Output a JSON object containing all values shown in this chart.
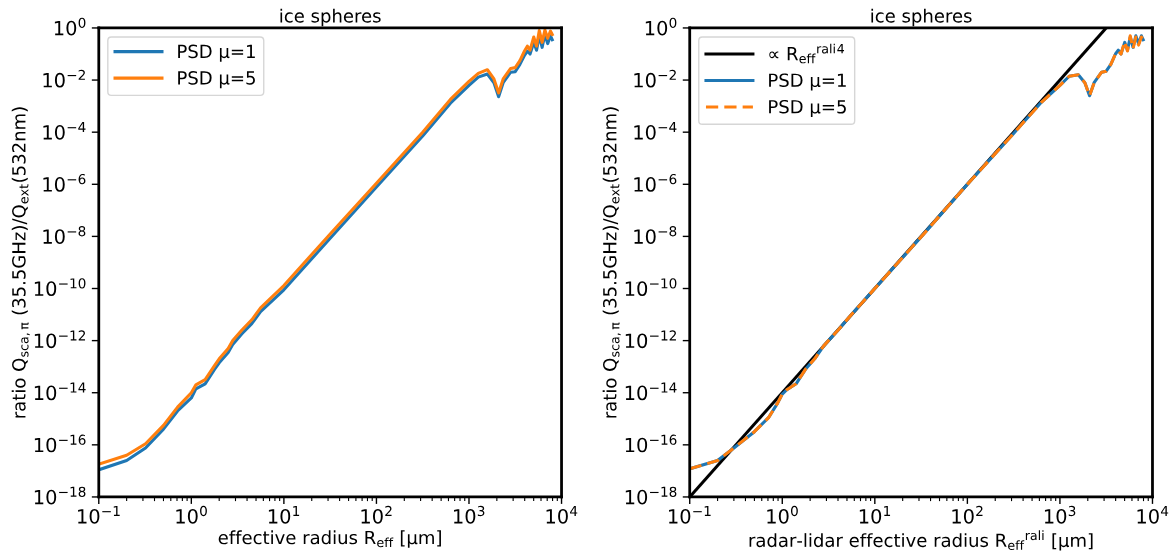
{
  "chart_data": [
    {
      "type": "line",
      "title": "ice spheres",
      "xlabel": "effective radius R$_{eff}$ [μm]",
      "ylabel": "ratio Q$_{sca,π}$ (35.5GHz)/Q$_{ext}$(532nm)",
      "log": "xy",
      "grid": false,
      "legend": "top left",
      "xlim": [
        0.1,
        10000
      ],
      "ylim": [
        1e-18,
        1
      ],
      "xticks": [
        {
          "value": 0.1,
          "label": "10$^{−1}$"
        },
        {
          "value": 1,
          "label": "10$^{0}$"
        },
        {
          "value": 10,
          "label": "10$^{1}$"
        },
        {
          "value": 100,
          "label": "10$^{2}$"
        },
        {
          "value": 1000,
          "label": "10$^{3}$"
        },
        {
          "value": 10000,
          "label": "10$^{4}$"
        }
      ],
      "yticks": [
        {
          "value": 1e-18,
          "label": "10$^{−18}$"
        },
        {
          "value": 1e-16,
          "label": "10$^{−16}$"
        },
        {
          "value": 1e-14,
          "label": "10$^{−14}$"
        },
        {
          "value": 1e-12,
          "label": "10$^{−12}$"
        },
        {
          "value": 1e-10,
          "label": "10$^{−10}$"
        },
        {
          "value": 1e-08,
          "label": "10$^{−8}$"
        },
        {
          "value": 1e-06,
          "label": "10$^{−6}$"
        },
        {
          "value": 0.0001,
          "label": "10$^{−4}$"
        },
        {
          "value": 0.01,
          "label": "10$^{−2}$"
        },
        {
          "value": 1,
          "label": "10$^{0}$"
        }
      ],
      "x": [
        0.1,
        0.2,
        0.32,
        0.5,
        0.71,
        1,
        1.12,
        1.41,
        1.78,
        2,
        2.5,
        2.8,
        3.5,
        4.5,
        5.6,
        10,
        32,
        100,
        316,
        630,
        1000,
        1260,
        1580,
        1860,
        2090,
        2340,
        2820,
        3160,
        3550,
        3980,
        4270,
        4570,
        5010,
        5370,
        5750,
        6170,
        6610,
        7080,
        7590,
        7940
      ],
      "series": [
        {
          "name": "PSD μ=1",
          "color": "#1f77b4",
          "line_style": "solid",
          "values": [
            1.1e-17,
            2.5e-17,
            7.6e-17,
            4e-16,
            2e-15,
            6.3e-15,
            1.4e-14,
            2.2e-14,
            7.9e-14,
            1.4e-13,
            3.5e-13,
            7.1e-13,
            1.8e-12,
            4.5e-12,
            1.3e-11,
            8.9e-11,
            8.9e-09,
            7.9e-07,
            7.1e-05,
            0.0013,
            0.0063,
            0.013,
            0.017,
            0.0079,
            0.0023,
            0.0079,
            0.02,
            0.021,
            0.04,
            0.089,
            0.13,
            0.1,
            0.28,
            0.14,
            0.5,
            0.18,
            0.56,
            0.25,
            0.5,
            0.35
          ]
        },
        {
          "name": "PSD μ=5",
          "color": "#ff7f0e",
          "line_style": "solid",
          "values": [
            1.8e-17,
            4e-17,
            1.1e-16,
            5.6e-16,
            2.8e-15,
            1e-14,
            2e-14,
            3.2e-14,
            1.1e-13,
            2e-13,
            5e-13,
            1e-12,
            2.5e-12,
            6.3e-12,
            1.8e-11,
            1.3e-10,
            1.3e-08,
            1.1e-06,
            0.0001,
            0.0018,
            0.0089,
            0.018,
            0.025,
            0.011,
            0.0032,
            0.011,
            0.028,
            0.03,
            0.056,
            0.13,
            0.2,
            0.14,
            0.45,
            0.2,
            0.79,
            0.28,
            0.83,
            0.4,
            0.76,
            0.56
          ]
        }
      ]
    },
    {
      "type": "line",
      "title": "ice spheres",
      "xlabel": "radar-lidar effective radius R$_{eff}$$^{rali}$ [μm]",
      "ylabel": "ratio Q$_{sca,π}$ (35.5GHz)/Q$_{ext}$(532nm)",
      "log": "xy",
      "grid": false,
      "legend": "top left",
      "xlim": [
        0.1,
        10000
      ],
      "ylim": [
        1e-18,
        1
      ],
      "xticks": [
        {
          "value": 0.1,
          "label": "10$^{−1}$"
        },
        {
          "value": 1,
          "label": "10$^{0}$"
        },
        {
          "value": 10,
          "label": "10$^{1}$"
        },
        {
          "value": 100,
          "label": "10$^{2}$"
        },
        {
          "value": 1000,
          "label": "10$^{3}$"
        },
        {
          "value": 10000,
          "label": "10$^{4}$"
        }
      ],
      "yticks": [
        {
          "value": 1e-18,
          "label": "10$^{−18}$"
        },
        {
          "value": 1e-16,
          "label": "10$^{−16}$"
        },
        {
          "value": 1e-14,
          "label": "10$^{−14}$"
        },
        {
          "value": 1e-12,
          "label": "10$^{−12}$"
        },
        {
          "value": 1e-10,
          "label": "10$^{−10}$"
        },
        {
          "value": 1e-08,
          "label": "10$^{−8}$"
        },
        {
          "value": 1e-06,
          "label": "10$^{−6}$"
        },
        {
          "value": 0.0001,
          "label": "10$^{−4}$"
        },
        {
          "value": 0.01,
          "label": "10$^{−2}$"
        },
        {
          "value": 1,
          "label": "10$^{0}$"
        }
      ],
      "x": [
        0.1,
        0.2,
        0.3,
        0.5,
        0.71,
        0.89,
        1,
        1.12,
        1.41,
        1.78,
        2.24,
        2.8,
        4,
        5.6,
        10,
        32,
        100,
        316,
        630,
        1000,
        1260,
        1580,
        1860,
        2090,
        2340,
        2820,
        3160,
        3550,
        3980,
        4270,
        4570,
        5010,
        5370,
        5750,
        6170,
        6610,
        7080,
        7590,
        7940
      ],
      "series": [
        {
          "name": "∝ R$_{eff}$$^{rali}$$^{4}$",
          "type": "line",
          "color": "#000000",
          "line_style": "solid",
          "x": [
            0.1,
            3160
          ],
          "values": [
            1e-18,
            1.0
          ]
        },
        {
          "name": "PSD μ=1",
          "color": "#1f77b4",
          "line_style": "solid",
          "values": [
            1.2e-17,
            2.5e-17,
            7.6e-17,
            3.2e-16,
            1.1e-15,
            4e-15,
            8.9e-15,
            1.3e-14,
            2.2e-14,
            7.9e-14,
            2e-13,
            6.3e-13,
            2.5e-12,
            1e-11,
            1e-10,
            1e-08,
            1e-06,
            8.9e-05,
            0.0014,
            0.0063,
            0.014,
            0.016,
            0.0079,
            0.0025,
            0.0079,
            0.02,
            0.022,
            0.04,
            0.1,
            0.14,
            0.1,
            0.28,
            0.14,
            0.45,
            0.18,
            0.5,
            0.25,
            0.5,
            0.35
          ]
        },
        {
          "name": "PSD μ=5",
          "color": "#ff7f0e",
          "line_style": "dashed",
          "values": [
            1.2e-17,
            2.5e-17,
            7.6e-17,
            3.2e-16,
            1.1e-15,
            4e-15,
            8.9e-15,
            1.3e-14,
            2.2e-14,
            7.9e-14,
            2e-13,
            6.3e-13,
            2.5e-12,
            1e-11,
            1e-10,
            1e-08,
            1e-06,
            8.9e-05,
            0.0014,
            0.0063,
            0.014,
            0.016,
            0.0079,
            0.0025,
            0.0079,
            0.02,
            0.022,
            0.04,
            0.1,
            0.13,
            0.1,
            0.3,
            0.13,
            0.5,
            0.16,
            0.45,
            0.22,
            0.45,
            0.33
          ]
        }
      ]
    }
  ]
}
